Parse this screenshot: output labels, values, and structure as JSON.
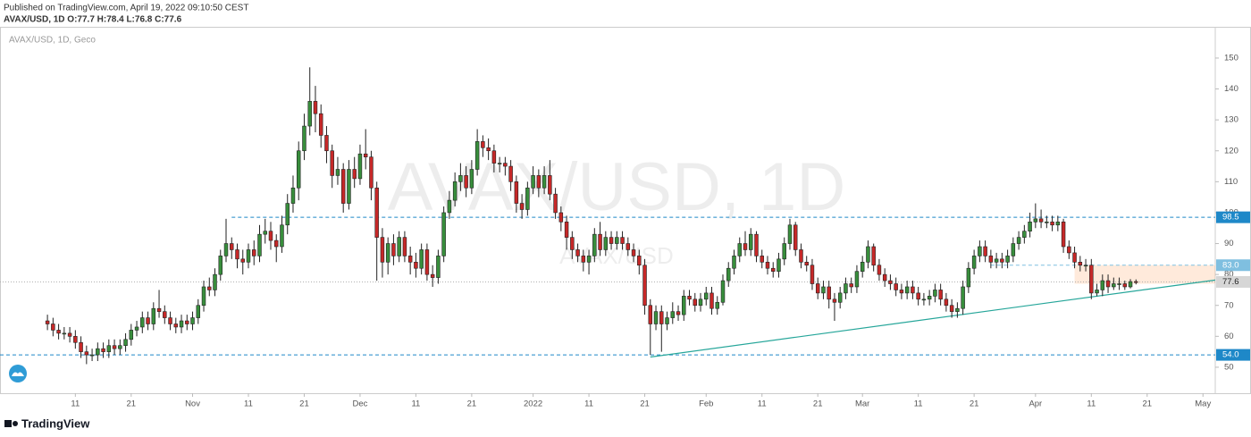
{
  "header": {
    "published": "Published on TradingView.com, April 19, 2022 09:10:50 CEST",
    "ohlc": "AVAX/USD, 1D O:77.7 H:78.4 L:76.8 C:77.6"
  },
  "footer": {
    "brand": "TradingView"
  },
  "chart_data": {
    "type": "candlestick",
    "symbol": "AVAX/USD, 1D, Geco",
    "watermark": "AVAX/USD, 1D",
    "watermark_sub": "AVAX/USD",
    "up_color": "#388e3c",
    "down_color": "#c62828",
    "grid": false,
    "xlim": [
      -3.5,
      214.2
    ],
    "ylim": [
      41.6,
      160.1
    ],
    "yticks": [
      50,
      60,
      70,
      80,
      90,
      100,
      110,
      120,
      130,
      140,
      150
    ],
    "xticks": [
      {
        "value": 10,
        "label": "11"
      },
      {
        "value": 20,
        "label": "21"
      },
      {
        "value": 31,
        "label": "Nov"
      },
      {
        "value": 41,
        "label": "11"
      },
      {
        "value": 51,
        "label": "21"
      },
      {
        "value": 61,
        "label": "Dec"
      },
      {
        "value": 71,
        "label": "11"
      },
      {
        "value": 81,
        "label": "21"
      },
      {
        "value": 92,
        "label": "2022"
      },
      {
        "value": 102,
        "label": "11"
      },
      {
        "value": 112,
        "label": "21"
      },
      {
        "value": 123,
        "label": "Feb"
      },
      {
        "value": 133,
        "label": "11"
      },
      {
        "value": 143,
        "label": "21"
      },
      {
        "value": 151,
        "label": "Mar"
      },
      {
        "value": 161,
        "label": "11"
      },
      {
        "value": 171,
        "label": "21"
      },
      {
        "value": 182,
        "label": "Apr"
      },
      {
        "value": 192,
        "label": "11"
      },
      {
        "value": 202,
        "label": "21"
      },
      {
        "value": 212,
        "label": "May"
      }
    ],
    "levels": [
      {
        "value": 98.5,
        "start": 38,
        "color": "#1e88c8"
      },
      {
        "value": 83,
        "label": "83.0",
        "start": 174,
        "color": "#7fbfe0"
      },
      {
        "value": 77.6,
        "color": "#b0b0b0"
      },
      {
        "value": 54,
        "label": "54.0",
        "color": "#1e88c8"
      }
    ],
    "trendline": {
      "x": [
        113,
        214.2
      ],
      "y": [
        53.3,
        78.2
      ],
      "color": "#26a69a"
    },
    "zone": {
      "x": [
        189,
        214.2
      ],
      "y": [
        77,
        83
      ],
      "color": "rgba(255,170,110,0.25)"
    },
    "x": [
      5,
      6,
      7,
      8,
      9,
      10,
      11,
      12,
      13,
      14,
      15,
      16,
      17,
      18,
      19,
      20,
      21,
      22,
      23,
      24,
      25,
      26,
      27,
      28,
      29,
      30,
      31,
      32,
      33,
      34,
      35,
      36,
      37,
      38,
      39,
      40,
      41,
      42,
      43,
      44,
      45,
      46,
      47,
      48,
      49,
      50,
      51,
      52,
      53,
      54,
      55,
      56,
      57,
      58,
      59,
      60,
      61,
      62,
      63,
      64,
      65,
      66,
      67,
      68,
      69,
      70,
      71,
      72,
      73,
      74,
      75,
      76,
      77,
      78,
      79,
      80,
      81,
      82,
      83,
      84,
      85,
      86,
      87,
      88,
      89,
      90,
      91,
      92,
      93,
      94,
      95,
      96,
      97,
      98,
      99,
      100,
      101,
      102,
      103,
      104,
      105,
      106,
      107,
      108,
      109,
      110,
      111,
      112,
      113,
      114,
      115,
      116,
      117,
      118,
      119,
      120,
      121,
      122,
      123,
      124,
      125,
      126,
      127,
      128,
      129,
      130,
      131,
      132,
      133,
      134,
      135,
      136,
      137,
      138,
      139,
      140,
      141,
      142,
      143,
      144,
      145,
      146,
      147,
      148,
      149,
      150,
      151,
      152,
      153,
      154,
      155,
      156,
      157,
      158,
      159,
      160,
      161,
      162,
      163,
      164,
      165,
      166,
      167,
      168,
      169,
      170,
      171,
      172,
      173,
      174,
      175,
      176,
      177,
      178,
      179,
      180,
      181,
      182,
      183,
      184,
      185,
      186,
      187,
      188,
      189,
      190,
      191,
      192,
      193,
      194,
      195,
      196,
      197,
      198,
      199,
      200
    ],
    "open": [
      65,
      64,
      62,
      61,
      61,
      60,
      58,
      55,
      54,
      54,
      56,
      55,
      57,
      56,
      57,
      59,
      62,
      63,
      66,
      64,
      69,
      68,
      66,
      64,
      63,
      65,
      64,
      66,
      70,
      76,
      75,
      80,
      86,
      90,
      88,
      85,
      84,
      88,
      86,
      93,
      94,
      91,
      89,
      96,
      103,
      108,
      120,
      128,
      136,
      132,
      125,
      120,
      112,
      114,
      103,
      114,
      111,
      119,
      118,
      108,
      92,
      84,
      90,
      86,
      92,
      86,
      84,
      82,
      88,
      80,
      79,
      86,
      100,
      104,
      110,
      112,
      108,
      114,
      123,
      121,
      120,
      116,
      116,
      115,
      110,
      103,
      101,
      108,
      112,
      108,
      112,
      106,
      100,
      97,
      92,
      88,
      86,
      84,
      86,
      93,
      88,
      92,
      90,
      92,
      90,
      88,
      86,
      83,
      70,
      64,
      68,
      64,
      66,
      68,
      67,
      73,
      72,
      70,
      72,
      74,
      69,
      71,
      78,
      82,
      86,
      90,
      88,
      93,
      86,
      84,
      82,
      81,
      85,
      90,
      96,
      88,
      84,
      83,
      77,
      74,
      76,
      72,
      71,
      74,
      77,
      76,
      81,
      84,
      89,
      83,
      80,
      78,
      77,
      75,
      74,
      76,
      74,
      72,
      72,
      73,
      75,
      72,
      70,
      68,
      69,
      76,
      82,
      86,
      89,
      86,
      84,
      85,
      84,
      86,
      90,
      92,
      94,
      97,
      98,
      97,
      97,
      96,
      97,
      89,
      87,
      84,
      83,
      83,
      74,
      75,
      78,
      76,
      77,
      77,
      76,
      77.7
    ],
    "high": [
      67,
      66,
      64,
      63,
      63,
      62,
      60,
      57,
      56,
      58,
      58,
      59,
      59,
      59,
      61,
      64,
      65,
      68,
      68,
      71,
      75,
      70,
      68,
      66,
      67,
      67,
      68,
      72,
      78,
      79,
      82,
      88,
      98,
      92,
      90,
      88,
      90,
      91,
      96,
      98,
      97,
      93,
      99,
      106,
      112,
      123,
      132,
      147,
      141,
      135,
      128,
      122,
      118,
      116,
      117,
      118,
      122,
      127,
      120,
      110,
      95,
      92,
      93,
      94,
      94,
      89,
      87,
      90,
      90,
      83,
      88,
      102,
      107,
      113,
      116,
      115,
      117,
      127,
      125,
      124,
      122,
      118,
      118,
      117,
      112,
      106,
      110,
      115,
      114,
      115,
      117,
      108,
      102,
      99,
      94,
      90,
      88,
      88,
      95,
      97,
      94,
      94,
      94,
      94,
      92,
      90,
      88,
      85,
      72,
      70,
      70,
      68,
      71,
      70,
      75,
      75,
      74,
      74,
      76,
      76,
      73,
      80,
      84,
      88,
      92,
      94,
      95,
      94,
      88,
      86,
      84,
      87,
      92,
      98,
      97,
      90,
      86,
      85,
      79,
      78,
      78,
      74,
      76,
      79,
      79,
      83,
      86,
      91,
      90,
      85,
      82,
      80,
      79,
      77,
      78,
      78,
      76,
      74,
      75,
      77,
      77,
      74,
      72,
      71,
      78,
      84,
      88,
      91,
      91,
      88,
      87,
      87,
      88,
      92,
      94,
      96,
      100,
      103,
      101,
      99,
      99,
      99,
      98,
      91,
      89,
      86,
      85,
      85,
      77,
      80,
      80,
      79,
      79,
      78,
      78.5,
      78.4
    ],
    "low": [
      62,
      60,
      59,
      59,
      58,
      56,
      53,
      51,
      52,
      52,
      53,
      53,
      54,
      54,
      55,
      57,
      60,
      61,
      62,
      62,
      66,
      64,
      62,
      61,
      61,
      62,
      62,
      64,
      68,
      73,
      73,
      78,
      84,
      85,
      82,
      80,
      82,
      83,
      84,
      90,
      88,
      84,
      87,
      93,
      100,
      104,
      117,
      125,
      126,
      121,
      116,
      108,
      109,
      100,
      101,
      108,
      109,
      114,
      104,
      78,
      79,
      80,
      83,
      84,
      84,
      80,
      79,
      80,
      78,
      76,
      77,
      84,
      98,
      102,
      107,
      105,
      106,
      112,
      118,
      117,
      113,
      113,
      112,
      107,
      100,
      98,
      99,
      106,
      105,
      106,
      104,
      98,
      94,
      88,
      85,
      84,
      81,
      80,
      84,
      86,
      86,
      88,
      88,
      88,
      86,
      84,
      80,
      67,
      54,
      62,
      55,
      62,
      64,
      65,
      65,
      70,
      68,
      68,
      70,
      67,
      67,
      70,
      76,
      80,
      84,
      86,
      86,
      84,
      82,
      80,
      79,
      79,
      83,
      88,
      86,
      82,
      81,
      75,
      72,
      72,
      69,
      65,
      69,
      72,
      74,
      74,
      79,
      82,
      81,
      78,
      76,
      75,
      73,
      72,
      72,
      72,
      70,
      70,
      70,
      71,
      70,
      68,
      66,
      66,
      67,
      74,
      80,
      84,
      84,
      82,
      82,
      82,
      82,
      84,
      88,
      90,
      92,
      95,
      95,
      95,
      94,
      94,
      87,
      85,
      82,
      81,
      81,
      72,
      73,
      73,
      74,
      75,
      75,
      75,
      75.5,
      76.8
    ],
    "close": [
      64,
      62,
      61,
      61,
      60,
      58,
      55,
      54,
      54,
      56,
      55,
      57,
      56,
      57,
      59,
      62,
      63,
      66,
      64,
      69,
      68,
      66,
      64,
      63,
      65,
      64,
      66,
      70,
      76,
      75,
      80,
      86,
      90,
      88,
      85,
      84,
      88,
      86,
      93,
      94,
      91,
      89,
      96,
      103,
      108,
      120,
      128,
      136,
      132,
      125,
      120,
      112,
      114,
      103,
      114,
      111,
      119,
      118,
      108,
      92,
      84,
      90,
      86,
      92,
      86,
      84,
      82,
      88,
      80,
      79,
      86,
      100,
      104,
      110,
      112,
      108,
      114,
      123,
      121,
      120,
      116,
      116,
      115,
      110,
      103,
      101,
      108,
      112,
      108,
      112,
      106,
      100,
      97,
      92,
      88,
      86,
      84,
      86,
      93,
      88,
      92,
      90,
      92,
      90,
      88,
      86,
      83,
      70,
      64,
      68,
      64,
      66,
      68,
      67,
      73,
      72,
      70,
      72,
      74,
      69,
      71,
      78,
      82,
      86,
      90,
      88,
      93,
      86,
      84,
      82,
      81,
      85,
      90,
      96,
      88,
      84,
      83,
      77,
      74,
      76,
      72,
      71,
      74,
      77,
      76,
      81,
      84,
      89,
      83,
      80,
      78,
      77,
      75,
      74,
      76,
      74,
      72,
      72,
      73,
      75,
      72,
      70,
      68,
      69,
      76,
      82,
      86,
      89,
      86,
      84,
      85,
      84,
      86,
      90,
      92,
      94,
      97,
      98,
      97,
      97,
      96,
      97,
      89,
      87,
      84,
      83,
      83,
      74,
      75,
      78,
      76,
      77,
      77,
      76,
      77.7,
      77.6
    ]
  }
}
